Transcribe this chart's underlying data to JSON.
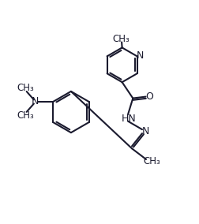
{
  "bg_color": "#ffffff",
  "line_color": "#1a1a2e",
  "line_width": 1.5,
  "font_size": 9,
  "figsize": [
    2.52,
    2.84
  ],
  "dpi": 100,
  "xlim": [
    0,
    10
  ],
  "ylim": [
    0,
    11.3
  ]
}
